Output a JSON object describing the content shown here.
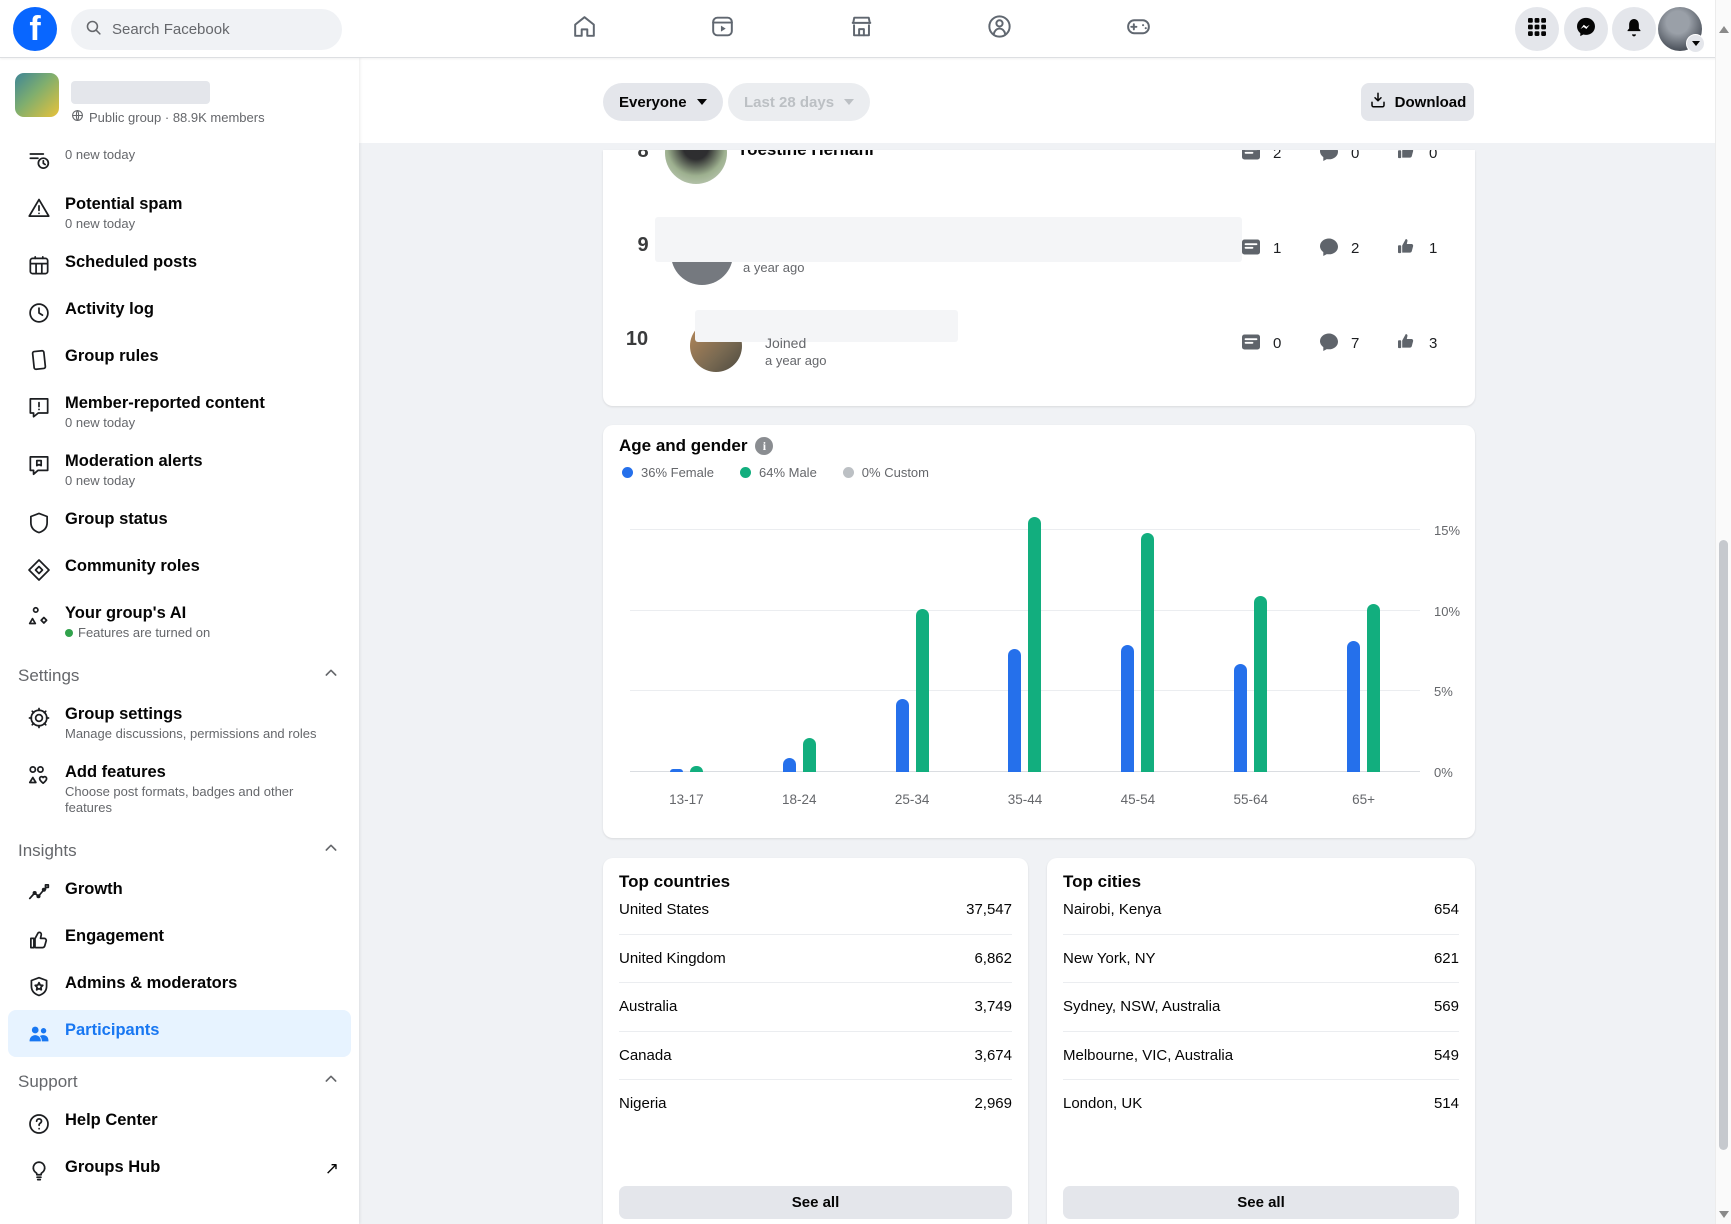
{
  "colors": {
    "accent_blue": "#1877F2",
    "brand_blue": "#0866FF",
    "chart_female": "#2570EB",
    "chart_male": "#12AE7E",
    "chart_custom": "#BCC0C4"
  },
  "topbar": {
    "search_placeholder": "Search Facebook"
  },
  "sidebar": {
    "group": {
      "subtitle": "Public group · 88.9K members"
    },
    "sections": {
      "settings": "Settings",
      "insights": "Insights",
      "support": "Support"
    },
    "items": {
      "member_requests": {
        "sub": "0 new today"
      },
      "potential_spam": {
        "label": "Potential spam",
        "sub": "0 new today"
      },
      "scheduled_posts": {
        "label": "Scheduled posts"
      },
      "activity_log": {
        "label": "Activity log"
      },
      "group_rules": {
        "label": "Group rules"
      },
      "member_reported": {
        "label": "Member-reported content",
        "sub": "0 new today"
      },
      "moderation_alerts": {
        "label": "Moderation alerts",
        "sub": "0 new today"
      },
      "group_status": {
        "label": "Group status"
      },
      "community_roles": {
        "label": "Community roles"
      },
      "groups_ai": {
        "label": "Your group's AI",
        "sub": "Features are turned on"
      },
      "group_settings": {
        "label": "Group settings",
        "sub": "Manage discussions, permissions and roles"
      },
      "add_features": {
        "label": "Add features",
        "sub": "Choose post formats, badges and other features"
      },
      "growth": {
        "label": "Growth"
      },
      "engagement": {
        "label": "Engagement"
      },
      "admins_moderators": {
        "label": "Admins & moderators"
      },
      "participants": {
        "label": "Participants"
      },
      "help_center": {
        "label": "Help Center"
      },
      "groups_hub": {
        "label": "Groups Hub"
      }
    }
  },
  "main": {
    "filters": {
      "audience": "Everyone",
      "date_range": "Last 28 days"
    },
    "download_label": "Download",
    "members": [
      {
        "rank": "8",
        "name": "Yoestine Herliani",
        "posts": "2",
        "comments": "0",
        "likes": "0"
      },
      {
        "rank": "9",
        "name": "",
        "time": "a year ago",
        "posts": "1",
        "comments": "2",
        "likes": "1"
      },
      {
        "rank": "10",
        "name": "",
        "joined_label": "Joined",
        "time": "a year ago",
        "posts": "0",
        "comments": "7",
        "likes": "3"
      }
    ],
    "top_countries": {
      "title": "Top countries",
      "see_all": "See all",
      "rows": [
        {
          "name": "United States",
          "value": "37,547"
        },
        {
          "name": "United Kingdom",
          "value": "6,862"
        },
        {
          "name": "Australia",
          "value": "3,749"
        },
        {
          "name": "Canada",
          "value": "3,674"
        },
        {
          "name": "Nigeria",
          "value": "2,969"
        }
      ]
    },
    "top_cities": {
      "title": "Top cities",
      "see_all": "See all",
      "rows": [
        {
          "name": "Nairobi, Kenya",
          "value": "654"
        },
        {
          "name": "New York, NY",
          "value": "621"
        },
        {
          "name": "Sydney, NSW, Australia",
          "value": "569"
        },
        {
          "name": "Melbourne, VIC, Australia",
          "value": "549"
        },
        {
          "name": "London, UK",
          "value": "514"
        }
      ]
    }
  },
  "chart_data": {
    "type": "bar",
    "title": "Age and gender",
    "legend": [
      "36% Female",
      "64% Male",
      "0% Custom"
    ],
    "legend_position": "top",
    "categories": [
      "13-17",
      "18-24",
      "25-34",
      "35-44",
      "45-54",
      "55-64",
      "65+"
    ],
    "series": [
      {
        "name": "Female",
        "color": "#2570EB",
        "values": [
          0.2,
          0.9,
          4.5,
          7.6,
          7.9,
          6.7,
          8.1
        ]
      },
      {
        "name": "Male",
        "color": "#12AE7E",
        "values": [
          0.35,
          2.1,
          10.1,
          15.8,
          14.8,
          10.9,
          10.4
        ]
      },
      {
        "name": "Custom",
        "color": "#BCC0C4",
        "values": [
          0,
          0,
          0,
          0,
          0,
          0,
          0
        ]
      }
    ],
    "grid": true,
    "yaxis_side": "right",
    "ylim": [
      0,
      16
    ],
    "yticks": [
      0,
      5,
      10,
      15
    ],
    "ytick_labels": [
      "0%",
      "5%",
      "10%",
      "15%"
    ]
  }
}
